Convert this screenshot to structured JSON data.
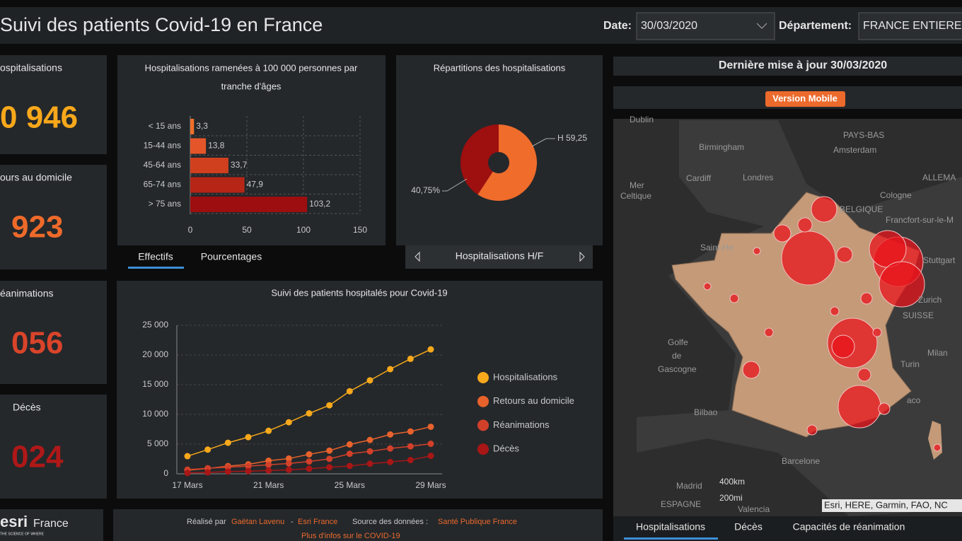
{
  "header": {
    "title": "Suivi des patients Covid-19 en France",
    "date_label": "Date:",
    "date": "30/03/2020",
    "department_label": "Département:",
    "department": "FRANCE ENTIERE"
  },
  "kpis": [
    {
      "label": "ospitalisations",
      "value": "0 946",
      "color": "#f7a81b"
    },
    {
      "label": "ours au domicile",
      "value": "923",
      "color": "#ee6a2a"
    },
    {
      "label": "éanimations",
      "value": "056",
      "color": "#d9442a"
    },
    {
      "label": "Décès",
      "value": "024",
      "color": "#b01818"
    }
  ],
  "age_chart": {
    "type": "bar",
    "title": "Hospitalisations ramenées à 100 000 personnes par",
    "title_line2": "tranche d'âges",
    "categories": [
      "< 15 ans",
      "15-44 ans",
      "45-64 ans",
      "65-74 ans",
      "> 75 ans"
    ],
    "values": [
      3.3,
      13.8,
      33.7,
      47.9,
      103.2
    ],
    "value_labels": [
      "3,3",
      "13,8",
      "33,7",
      "47,9",
      "103,2"
    ],
    "colors": [
      "#f0702a",
      "#e4562a",
      "#d0401f",
      "#b52617",
      "#9c0e10"
    ],
    "xlim": [
      0,
      150
    ],
    "xticks": [
      0,
      50,
      100,
      150
    ],
    "grid": true
  },
  "age_tabs": [
    "Effectifs",
    "Pourcentages"
  ],
  "sex_chart": {
    "type": "pie",
    "title": "Répartitions des hospitalisations",
    "values": [
      59.25,
      40.75
    ],
    "value_labels": [
      "H 59,25",
      "40,75%"
    ],
    "colors": [
      "#ef6c2b",
      "#9e0f0f"
    ]
  },
  "sex_nav": "Hospitalisations H/F",
  "trend_chart": {
    "type": "line",
    "title": "Suivi des patients hospitalés pour Covid-19",
    "categories": [
      "17 Mars",
      null,
      null,
      null,
      "21 Mars",
      null,
      null,
      null,
      "25 Mars",
      null,
      null,
      null,
      "29 Mars"
    ],
    "series": [
      {
        "name": "Hospitalisations",
        "color": "#f7a81b",
        "values": [
          2972,
          4073,
          5226,
          6172,
          7240,
          8675,
          10176,
          11539,
          13904,
          15732,
          17620,
          19354,
          20946
        ]
      },
      {
        "name": "Retours au domicile",
        "color": "#e8622c",
        "values": [
          602,
          900,
          1300,
          1587,
          2200,
          2567,
          3281,
          3900,
          4948,
          5700,
          6624,
          7132,
          7923
        ]
      },
      {
        "name": "Réanimations",
        "color": "#d2402a",
        "values": [
          699,
          931,
          1122,
          1297,
          1525,
          1746,
          2080,
          2516,
          3375,
          3787,
          4273,
          4632,
          5056
        ]
      },
      {
        "name": "Décès",
        "color": "#a81616",
        "values": [
          148,
          243,
          372,
          450,
          562,
          674,
          860,
          1100,
          1331,
          1696,
          1995,
          2314,
          3024
        ]
      }
    ],
    "ylim": [
      0,
      25000
    ],
    "yticks": [
      0,
      {
        "value": 5000,
        "label": "5 000"
      },
      {
        "value": 10000,
        "label": "10 000"
      },
      {
        "value": 15000,
        "label": "15 000"
      },
      {
        "value": 20000,
        "label": "20 000"
      },
      {
        "value": 25000,
        "label": "25 000"
      }
    ],
    "grid": true
  },
  "map": {
    "update": "Dernière mise à jour 30/03/2020",
    "mobile": "Version Mobile",
    "attribution": "Esri, HERE, Garmin, FAO, NC",
    "tabs": [
      "Hospitalisations",
      "Décès",
      "Capacités de réanimation"
    ],
    "places": [
      "Dublin",
      "Birmingham",
      "Amsterdam",
      "Cardiff",
      "Londres",
      "Cologne",
      "Francfort-sur-le-M",
      "Stuttgart",
      "Zurich",
      "SUISSE",
      "Milan",
      "Turin",
      "Bilbao",
      "Barcelone",
      "Madrid",
      "Valencia",
      "ESPAGNE",
      "Mer",
      "Celtique",
      "Golfe",
      "de",
      "Gascogne",
      "BELGIQUE",
      "PAYS-BAS",
      "ALLEMA",
      "Saint-He",
      "aco"
    ],
    "scale": [
      "400km",
      "200mi"
    ]
  },
  "footer": {
    "logo": "esri",
    "logo_country": "France",
    "tagline": "THE SCIENCE OF WHERE",
    "made_by": "Réalisé par",
    "author": "Gaëtan Lavenu",
    "dash": "-",
    "org": "Esri France",
    "source_label": "Source des données :",
    "source": "Santé Publique France",
    "more": "Plus d'infos sur le COVID-19"
  }
}
